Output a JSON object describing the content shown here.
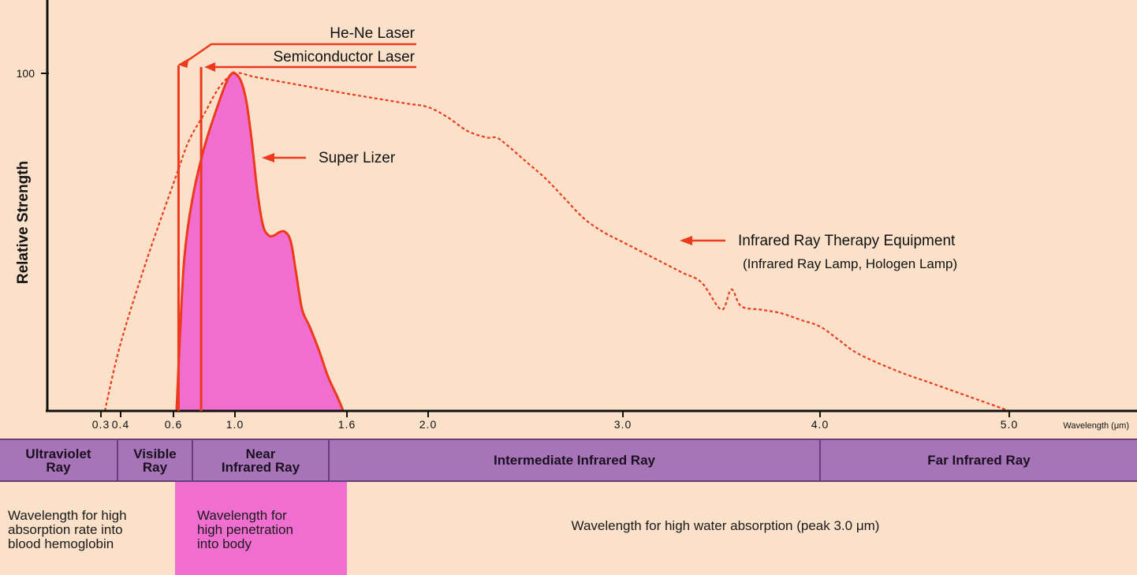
{
  "chart_data": {
    "type": "area",
    "ylabel": "Relative Strength",
    "xlabel": "Wavelength (μm)",
    "y_ticks": [
      {
        "value": 100,
        "label": "100"
      }
    ],
    "ylim": [
      0,
      100
    ],
    "x_ticks": [
      {
        "value": 0.3,
        "label": "0.3"
      },
      {
        "value": 0.4,
        "label": "0.4"
      },
      {
        "value": 0.6,
        "label": "0.6"
      },
      {
        "value": 1.0,
        "label": "1.0"
      },
      {
        "value": 1.6,
        "label": "1.6"
      },
      {
        "value": 2.0,
        "label": "2.0"
      },
      {
        "value": 3.0,
        "label": "3.0"
      },
      {
        "value": 4.0,
        "label": "4.0"
      },
      {
        "value": 5.0,
        "label": "5.0"
      }
    ],
    "series": [
      {
        "name": "Super Lizer",
        "style": "filled",
        "color": "#f06ed0",
        "stroke": "#ee3a1c",
        "x": [
          0.62,
          0.64,
          0.67,
          0.72,
          0.8,
          0.9,
          0.95,
          0.98,
          1.0,
          1.03,
          1.06,
          1.09,
          1.12,
          1.15,
          1.18,
          1.21,
          1.24,
          1.27,
          1.3,
          1.33,
          1.36,
          1.4,
          1.45,
          1.5,
          1.55,
          1.58
        ],
        "y": [
          0,
          20,
          45,
          62,
          78,
          92,
          98,
          100,
          100,
          98,
          92,
          80,
          65,
          55,
          52,
          52,
          53,
          53,
          50,
          40,
          30,
          25,
          18,
          10,
          4,
          0
        ]
      },
      {
        "name": "Infrared Ray Therapy Equipment",
        "style": "dotted",
        "color": "#ee3a1c",
        "x": [
          0.32,
          0.4,
          0.5,
          0.62,
          0.7,
          0.8,
          0.9,
          1.0,
          1.1,
          1.2,
          1.3,
          1.4,
          1.5,
          1.6,
          1.7,
          1.8,
          1.9,
          2.0,
          2.1,
          2.2,
          2.3,
          2.35,
          2.4,
          2.5,
          2.6,
          2.7,
          2.8,
          2.9,
          3.0,
          3.1,
          3.2,
          3.3,
          3.4,
          3.5,
          3.55,
          3.6,
          3.7,
          3.8,
          3.9,
          4.0,
          4.1,
          4.2,
          4.4,
          4.6,
          4.8,
          5.0
        ],
        "y": [
          0,
          20,
          45,
          70,
          80,
          88,
          96,
          100,
          99,
          98,
          97,
          96,
          95,
          94,
          93,
          92,
          91,
          90,
          87,
          83,
          81,
          81,
          79,
          74,
          69,
          63,
          57,
          53,
          50,
          47,
          44,
          41,
          38,
          30,
          36,
          31,
          30,
          29,
          27,
          25,
          21,
          17,
          12,
          8,
          4,
          0
        ]
      }
    ],
    "lasers": [
      {
        "name": "He-Ne Laser",
        "wavelength": 0.633,
        "label": "He-Ne Laser"
      },
      {
        "name": "Semiconductor Laser",
        "wavelength": 0.78,
        "label": "Semiconductor Laser"
      }
    ],
    "annotations": {
      "super_lizer": "Super Lizer",
      "ir_line1": "Infrared Ray Therapy Equipment",
      "ir_line2": "(Infrared Ray Lamp, Hologen Lamp)"
    },
    "bands": [
      {
        "name": "Ultraviolet Ray",
        "lines": [
          "Ultraviolet",
          "Ray"
        ]
      },
      {
        "name": "Visible Ray",
        "lines": [
          "Visible",
          "Ray"
        ]
      },
      {
        "name": "Near Infrared Ray",
        "lines": [
          "Near",
          "Infrared Ray"
        ]
      },
      {
        "name": "Intermediate Infrared Ray",
        "lines": [
          "Intermediate Infrared Ray"
        ]
      },
      {
        "name": "Far Infrared Ray",
        "lines": [
          "Far Infrared Ray"
        ]
      }
    ],
    "notes": [
      {
        "lines": [
          "Wavelength for high",
          "absorption rate into",
          "blood hemoglobin"
        ]
      },
      {
        "lines": [
          "Wavelength for",
          "high penetration",
          "into body"
        ]
      },
      {
        "lines": [
          "Wavelength for high water absorption (peak 3.0 μm)"
        ]
      }
    ]
  }
}
